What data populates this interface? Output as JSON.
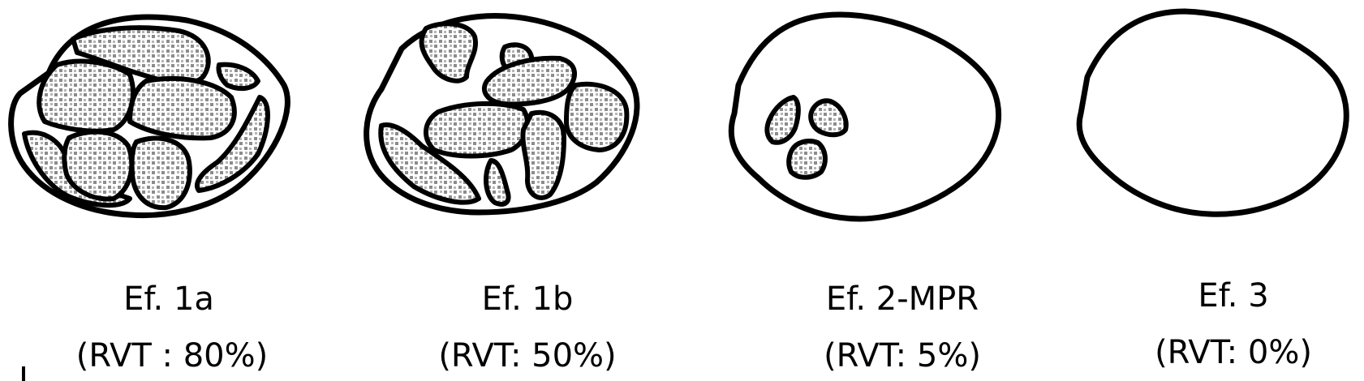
{
  "colors": {
    "stroke": "#000000",
    "dot_fill": "#8c8c8c",
    "background": "#ffffff"
  },
  "panels": [
    {
      "id": "1a",
      "title": "Ef. 1a",
      "subtitle": "(RVT : 80%)",
      "rvt_fraction": 0.8
    },
    {
      "id": "1b",
      "title": "Ef. 1b",
      "subtitle": "(RVT: 50%)",
      "rvt_fraction": 0.5
    },
    {
      "id": "2mpr",
      "title": "Ef. 2-MPR",
      "subtitle": "(RVT: 5%)",
      "rvt_fraction": 0.05
    },
    {
      "id": "3",
      "title": "Ef. 3",
      "subtitle": "(RVT: 0%)",
      "rvt_fraction": 0
    }
  ]
}
